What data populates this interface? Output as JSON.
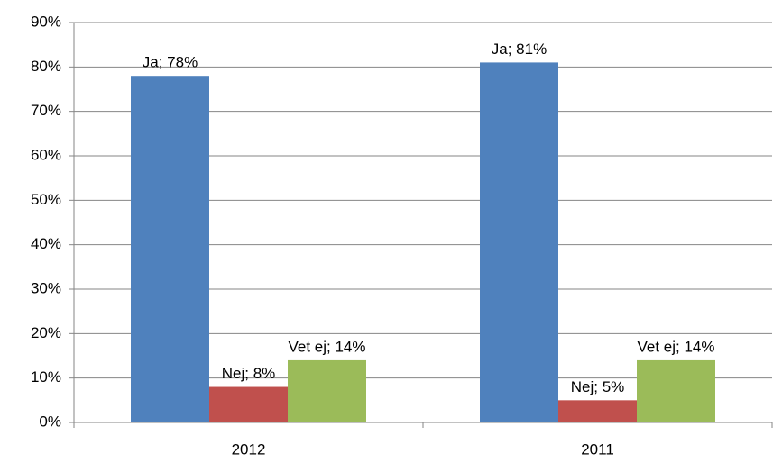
{
  "chart_data": {
    "type": "bar",
    "categories": [
      "2012",
      "2011"
    ],
    "series": [
      {
        "color": "#4f81bd",
        "values": [
          78,
          81
        ],
        "value_labels": [
          "Ja; 78%",
          "Ja; 81%"
        ]
      },
      {
        "color": "#c0504d",
        "values": [
          8,
          5
        ],
        "value_labels": [
          "Nej; 8%",
          "Nej; 5%"
        ]
      },
      {
        "color": "#9bbb59",
        "values": [
          14,
          14
        ],
        "value_labels": [
          "Vet ej; 14%",
          "Vet ej; 14%"
        ]
      }
    ],
    "ylim": [
      0,
      90
    ],
    "yticks": [
      {
        "value": 0,
        "label": "0%"
      },
      {
        "value": 10,
        "label": "10%"
      },
      {
        "value": 20,
        "label": "20%"
      },
      {
        "value": 30,
        "label": "30%"
      },
      {
        "value": 40,
        "label": "40%"
      },
      {
        "value": 50,
        "label": "50%"
      },
      {
        "value": 60,
        "label": "60%"
      },
      {
        "value": 70,
        "label": "70%"
      },
      {
        "value": 80,
        "label": "80%"
      },
      {
        "value": 90,
        "label": "90%"
      }
    ],
    "grid": true
  }
}
